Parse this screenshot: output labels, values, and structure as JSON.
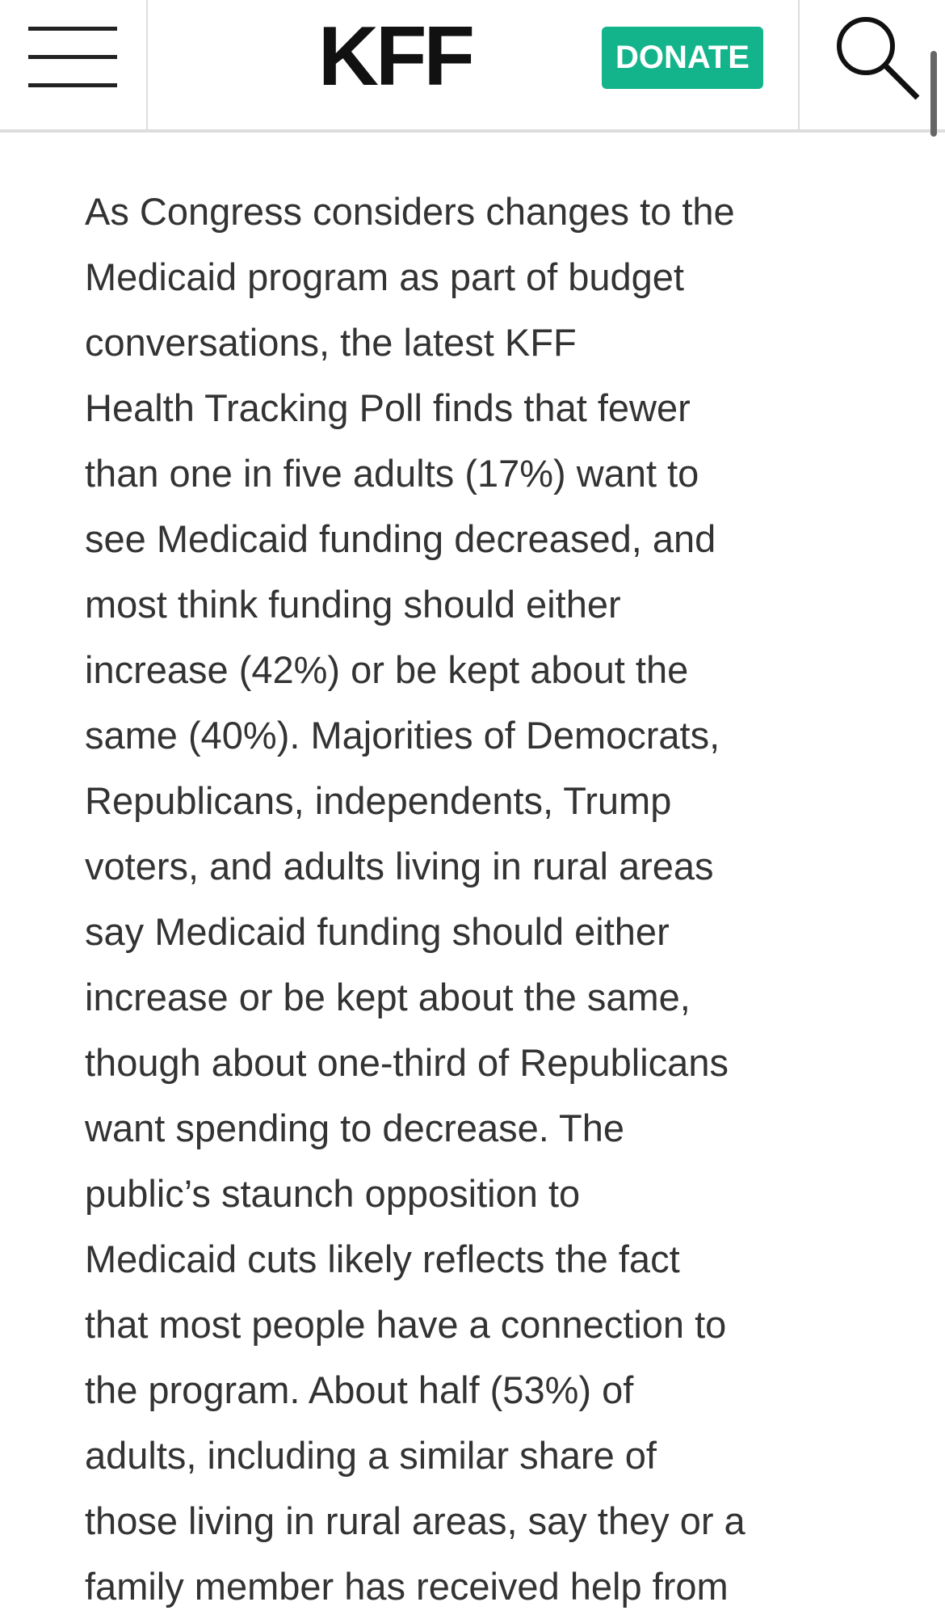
{
  "header": {
    "logo": "KFF",
    "donate": "DONATE"
  },
  "article": {
    "lines": [
      "As Congress considers changes to the",
      "Medicaid program as part of budget",
      "conversations, the latest KFF",
      "Health Tracking Poll finds that fewer",
      "than one in five adults (17%) want to",
      "see Medicaid funding decreased, and",
      "most think funding should either",
      "increase (42%) or be kept about the",
      "same (40%). Majorities of Democrats,",
      "Republicans, independents, Trump",
      "voters, and adults living in rural areas",
      "say Medicaid funding should either",
      "increase or be kept about the same,",
      "though about one-third of Republicans",
      "want spending to decrease. The",
      "public’s staunch opposition to",
      "Medicaid cuts likely reflects the fact",
      "that most people have a connection to",
      "the program. About half (53%) of",
      "adults, including a similar share of",
      "those living in rural areas, say they or a",
      "family member has received help from"
    ]
  }
}
